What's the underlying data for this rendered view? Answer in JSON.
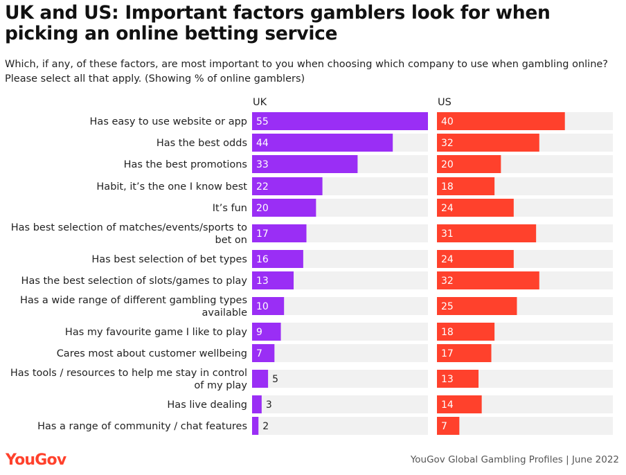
{
  "header": {
    "title": "UK and US: Important factors gamblers look for when picking an online betting service",
    "subtitle": "Which, if any, of these factors, are most important to you when choosing which company to use when gambling online? Please select all that apply. (Showing % of online gamblers)"
  },
  "footer": {
    "logo": "YouGov",
    "source": "YouGov Global Gambling Profiles | June 2022"
  },
  "colors": {
    "uk": "#9a2ef5",
    "us": "#ff412c",
    "track": "#f1f1f1"
  },
  "chart_data": {
    "type": "bar",
    "orientation": "horizontal",
    "categories": [
      "Has easy to use website or app",
      "Has the best odds",
      "Has the best promotions",
      "Habit, it’s the one I know best",
      "It’s fun",
      "Has best selection of matches/events/sports to bet on",
      "Has best selection of bet types",
      "Has the best selection of slots/games to play",
      "Has a wide range of different gambling types available",
      "Has my favourite game I like to play",
      "Cares most about customer wellbeing",
      "Has tools / resources to help me stay in control of my play",
      "Has live dealing",
      "Has a range of community / chat features"
    ],
    "category_lines": [
      [
        "Has easy to use website or app"
      ],
      [
        "Has the best odds"
      ],
      [
        "Has the best promotions"
      ],
      [
        "Habit, it’s the one I know best"
      ],
      [
        "It’s fun"
      ],
      [
        "Has best selection of matches/events/sports to",
        "bet on"
      ],
      [
        "Has best selection of bet types"
      ],
      [
        "Has the best selection of slots/games to play"
      ],
      [
        "Has a wide range of different gambling types",
        "available"
      ],
      [
        "Has my favourite game I like to play"
      ],
      [
        "Cares most about customer wellbeing"
      ],
      [
        "Has tools / resources to help me stay in control",
        "of my play"
      ],
      [
        "Has live dealing"
      ],
      [
        "Has a range of community / chat features"
      ]
    ],
    "series": [
      {
        "name": "UK",
        "values": [
          55,
          44,
          33,
          22,
          20,
          17,
          16,
          13,
          10,
          9,
          7,
          5,
          3,
          2
        ]
      },
      {
        "name": "US",
        "values": [
          40,
          32,
          20,
          18,
          24,
          31,
          24,
          32,
          25,
          18,
          17,
          13,
          14,
          7
        ]
      }
    ],
    "xlim": [
      0,
      55
    ],
    "grid": false,
    "legend": "none"
  }
}
